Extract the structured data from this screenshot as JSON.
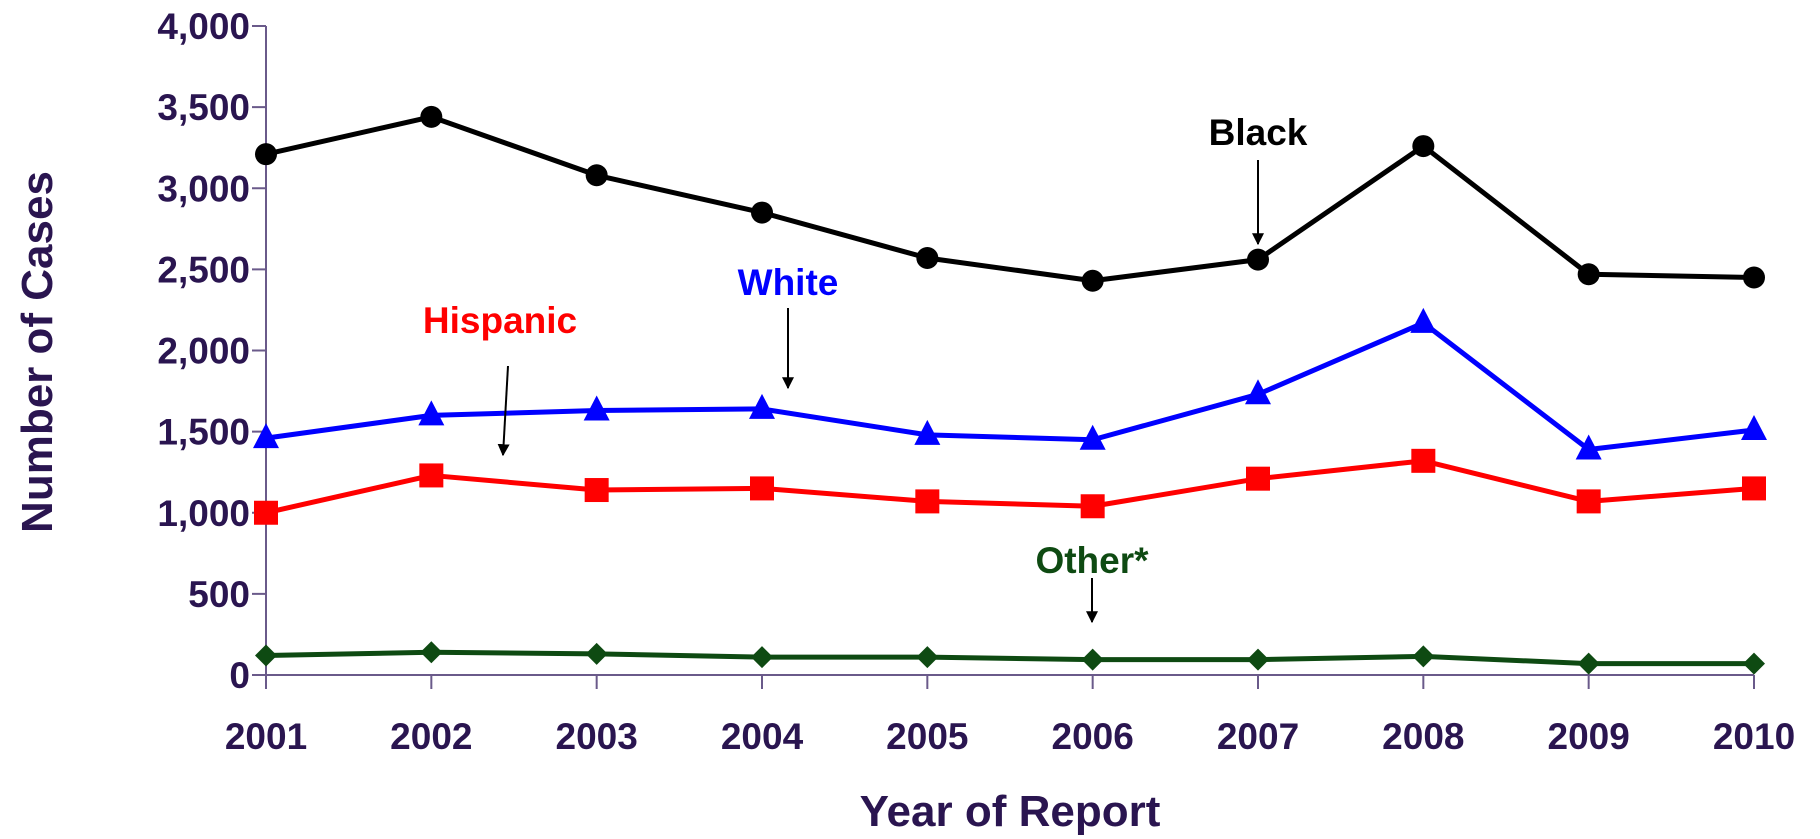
{
  "chart_data": {
    "type": "line",
    "title": "",
    "xlabel": "Year of Report",
    "ylabel": "Number of Cases",
    "ylim": [
      0,
      4000
    ],
    "y_ticks": [
      "0",
      "500",
      "1,000",
      "1,500",
      "2,000",
      "2,500",
      "3,000",
      "3,500",
      "4,000"
    ],
    "categories": [
      "2001",
      "2002",
      "2003",
      "2004",
      "2005",
      "2006",
      "2007",
      "2008",
      "2009",
      "2010"
    ],
    "grid": false,
    "legend": "direct labels with arrows",
    "series": [
      {
        "name": "Black",
        "color": "#000000",
        "marker": "circle",
        "values": [
          3210,
          3440,
          3080,
          2850,
          2570,
          2430,
          2560,
          3260,
          2470,
          2450
        ]
      },
      {
        "name": "White",
        "color": "#0000ff",
        "marker": "triangle",
        "values": [
          1460,
          1600,
          1630,
          1640,
          1480,
          1450,
          1730,
          2170,
          1390,
          1510
        ]
      },
      {
        "name": "Hispanic",
        "color": "#ff0000",
        "marker": "square",
        "values": [
          1000,
          1230,
          1140,
          1150,
          1070,
          1040,
          1210,
          1320,
          1070,
          1150
        ]
      },
      {
        "name": "Other*",
        "color": "#0e4a12",
        "marker": "diamond",
        "values": [
          120,
          140,
          130,
          110,
          110,
          95,
          95,
          115,
          70,
          70
        ]
      }
    ]
  }
}
